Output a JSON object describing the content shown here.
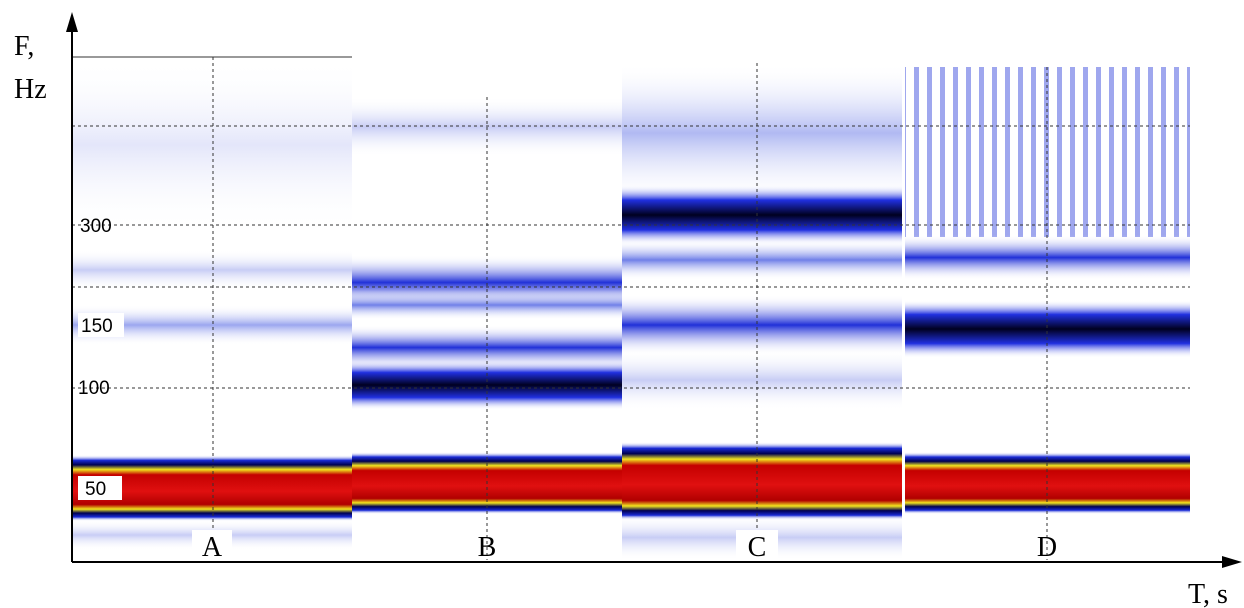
{
  "figure": {
    "y_label": [
      "F,",
      "Hz"
    ],
    "x_label": "T, s",
    "y_tick_labels": [
      "300",
      "150",
      "100",
      "50"
    ],
    "panels": [
      "A",
      "B",
      "C",
      "D"
    ]
  }
}
